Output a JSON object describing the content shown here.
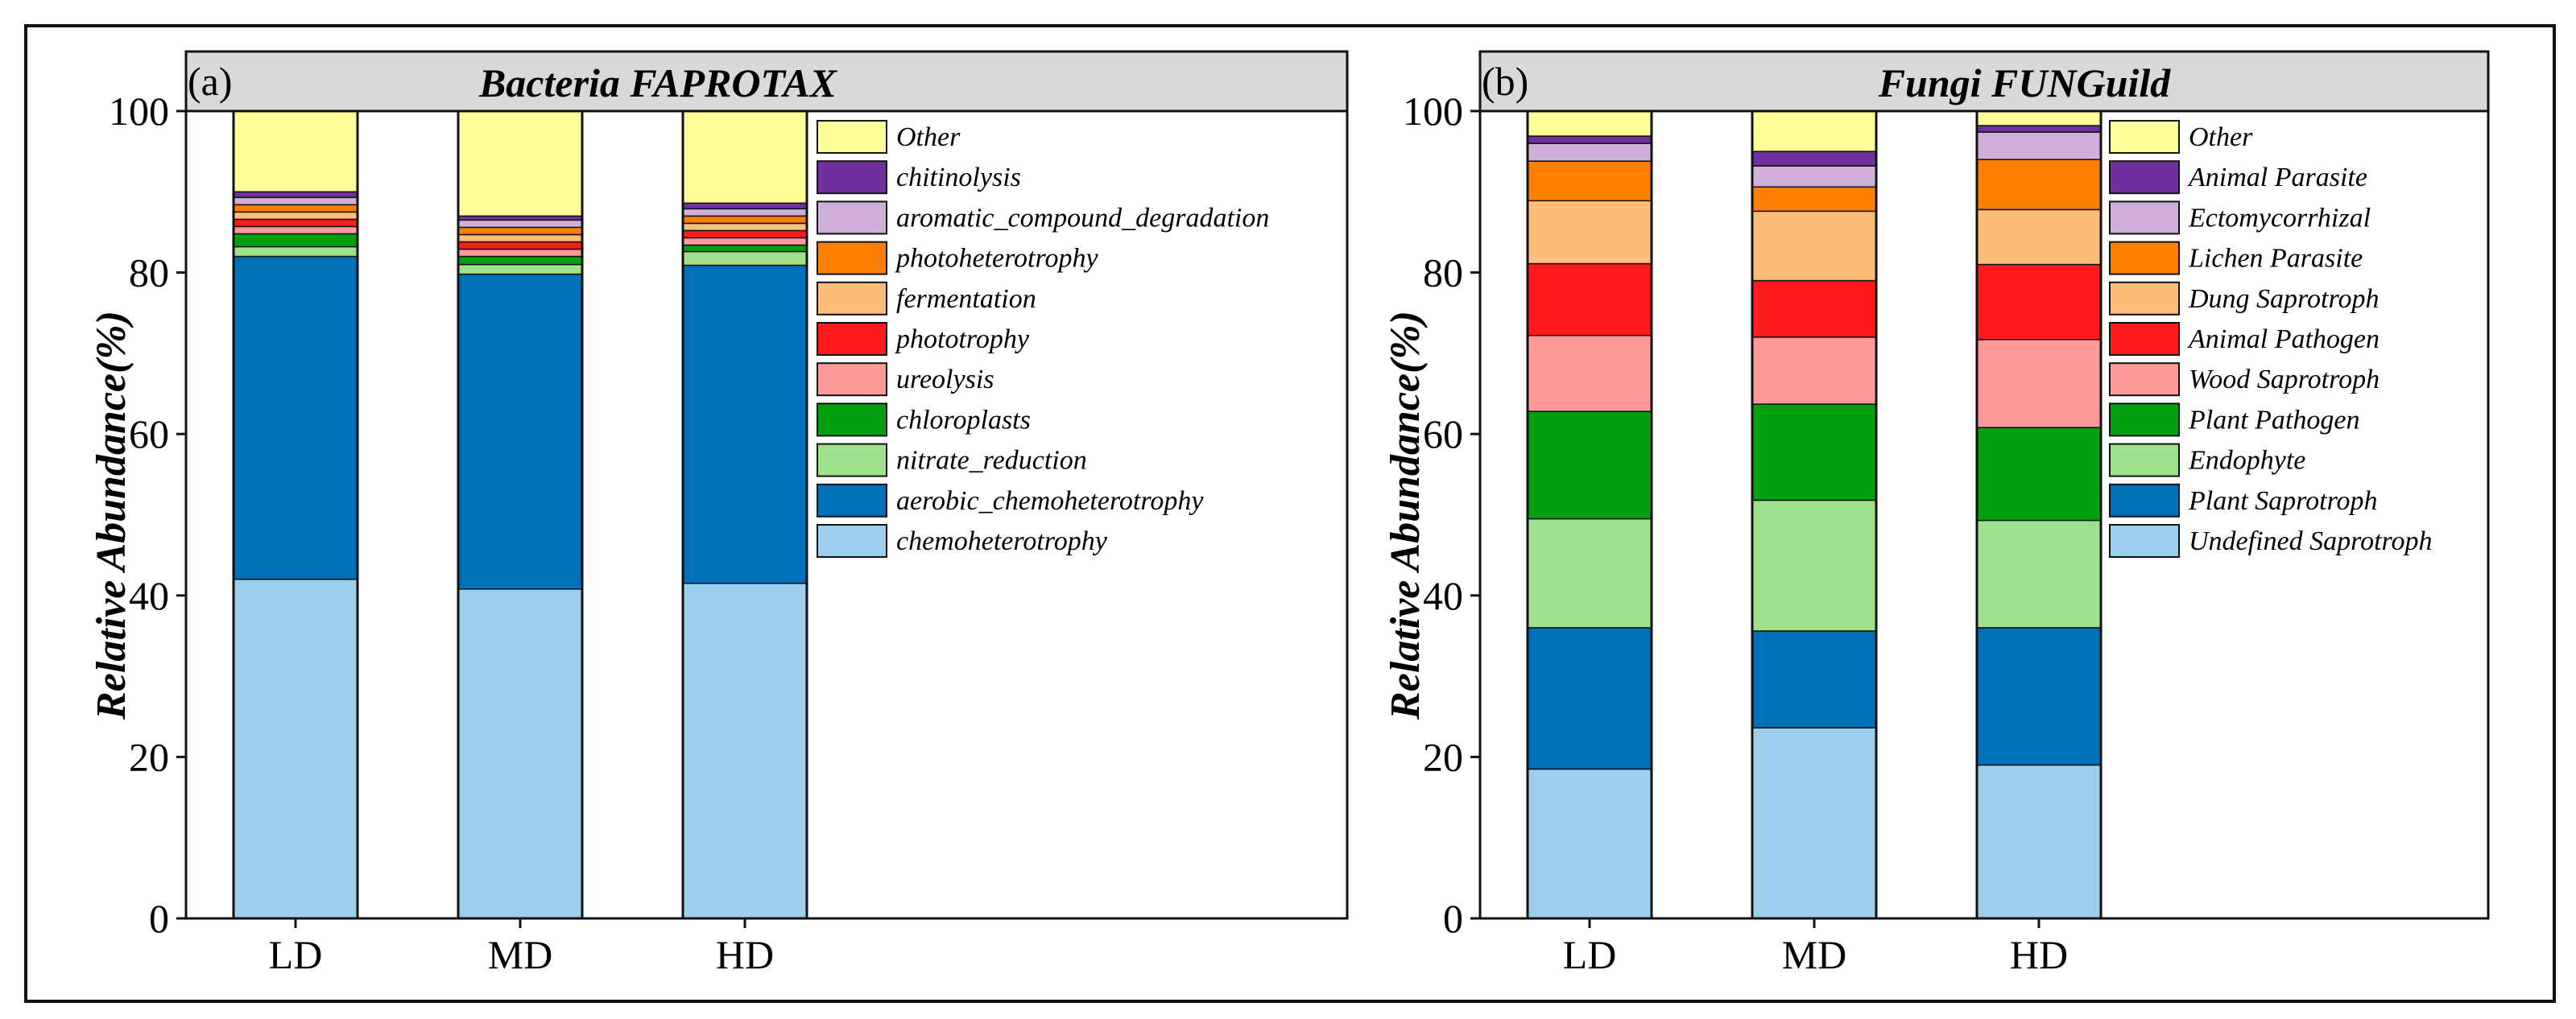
{
  "chart_data": [
    {
      "type": "bar",
      "stacked": true,
      "panel_label": "(a)",
      "title": "Bacteria FAPROTAX",
      "xlabel": "",
      "ylabel": "Relative Abundance(%)",
      "ylim": [
        0,
        100
      ],
      "yticks": [
        "0",
        "20",
        "40",
        "60",
        "80",
        "100"
      ],
      "categories": [
        "LD",
        "MD",
        "HD"
      ],
      "legend_position": "right",
      "series": [
        {
          "name": "chemoheterotrophy",
          "color": "#9ccfee",
          "values": [
            42.0,
            40.8,
            41.5
          ]
        },
        {
          "name": "aerobic_chemoheterotrophy",
          "color": "#0070b8",
          "values": [
            40.0,
            39.0,
            39.4
          ]
        },
        {
          "name": "nitrate_reduction",
          "color": "#a0e28b",
          "values": [
            1.2,
            1.2,
            1.7
          ]
        },
        {
          "name": "chloroplasts",
          "color": "#03a10f",
          "values": [
            1.6,
            1.0,
            0.8
          ]
        },
        {
          "name": "ureolysis",
          "color": "#ff9a9a",
          "values": [
            0.9,
            0.9,
            0.9
          ]
        },
        {
          "name": "phototrophy",
          "color": "#ff1b1b",
          "values": [
            0.9,
            0.9,
            0.9
          ]
        },
        {
          "name": "fermentation",
          "color": "#ffbe77",
          "values": [
            0.9,
            0.9,
            0.9
          ]
        },
        {
          "name": "photoheterotrophy",
          "color": "#ff7f00",
          "values": [
            0.9,
            0.9,
            0.9
          ]
        },
        {
          "name": "aromatic_compound_degradation",
          "color": "#d0b0d8",
          "values": [
            0.9,
            0.9,
            0.9
          ]
        },
        {
          "name": "chitinolysis",
          "color": "#7030a0",
          "values": [
            0.7,
            0.5,
            0.7
          ]
        },
        {
          "name": "Other",
          "color": "#ffff99",
          "values": [
            10.0,
            13.0,
            11.4
          ]
        }
      ]
    },
    {
      "type": "bar",
      "stacked": true,
      "panel_label": "(b)",
      "title": "Fungi FUNGuild",
      "xlabel": "",
      "ylabel": "Relative Abundance(%)",
      "ylim": [
        0,
        100
      ],
      "yticks": [
        "0",
        "20",
        "40",
        "60",
        "80",
        "100"
      ],
      "categories": [
        "LD",
        "MD",
        "HD"
      ],
      "legend_position": "right",
      "series": [
        {
          "name": "Undefined Saprotroph",
          "color": "#9ccfee",
          "values": [
            18.5,
            23.6,
            19.0
          ]
        },
        {
          "name": "Plant Saprotroph",
          "color": "#0070b8",
          "values": [
            17.5,
            12.0,
            17.0
          ]
        },
        {
          "name": "Endophyte",
          "color": "#a0e28b",
          "values": [
            13.5,
            16.2,
            13.3
          ]
        },
        {
          "name": "Plant Pathogen",
          "color": "#03a10f",
          "values": [
            13.3,
            11.9,
            11.5
          ]
        },
        {
          "name": "Wood Saprotroph",
          "color": "#ff9a9a",
          "values": [
            9.4,
            8.3,
            10.9
          ]
        },
        {
          "name": "Animal Pathogen",
          "color": "#ff1b1b",
          "values": [
            8.9,
            7.0,
            9.3
          ]
        },
        {
          "name": "Dung Saprotroph",
          "color": "#ffbe77",
          "values": [
            7.8,
            8.6,
            6.8
          ]
        },
        {
          "name": "Lichen Parasite",
          "color": "#ff7f00",
          "values": [
            4.9,
            3.0,
            6.2
          ]
        },
        {
          "name": "Ectomycorrhizal",
          "color": "#d0b0d8",
          "values": [
            2.2,
            2.6,
            3.4
          ]
        },
        {
          "name": "Animal Parasite",
          "color": "#7030a0",
          "values": [
            0.9,
            1.8,
            0.8
          ]
        },
        {
          "name": "Other",
          "color": "#ffff99",
          "values": [
            3.1,
            5.0,
            1.8
          ]
        }
      ]
    }
  ]
}
